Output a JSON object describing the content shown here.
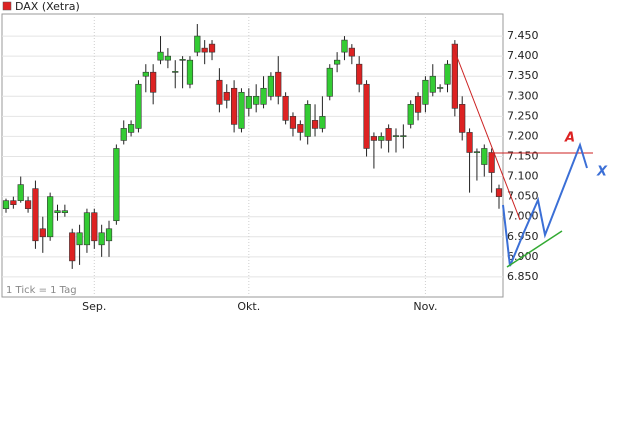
{
  "chart_data": {
    "type": "candlestick",
    "series": [
      {
        "name": "DAX (Xetra)",
        "color": "#dd2222",
        "open": [
          7020,
          7040,
          7040,
          7040,
          7070,
          6970,
          6950,
          7010,
          7010,
          6960,
          6930,
          6930,
          7010,
          6930,
          6940,
          6990,
          7190,
          7210,
          7220,
          7350,
          7360,
          7390,
          7390,
          7360,
          7390,
          7330,
          7410,
          7420,
          7430,
          7340,
          7310,
          7320,
          7220,
          7270,
          7280,
          7280,
          7300,
          7360,
          7300,
          7250,
          7230,
          7200,
          7240,
          7220,
          7300,
          7380,
          7410,
          7420,
          7380,
          7330,
          7200,
          7190,
          7220,
          7200,
          7200,
          7230,
          7300,
          7280,
          7310,
          7320,
          7330,
          7430,
          7280,
          7210,
          7160,
          7130,
          7160,
          7070
        ],
        "high": [
          7045,
          7050,
          7100,
          7050,
          7090,
          7000,
          7060,
          7030,
          7030,
          6970,
          6980,
          7020,
          7020,
          6980,
          6990,
          7180,
          7240,
          7240,
          7340,
          7380,
          7380,
          7450,
          7420,
          7390,
          7400,
          7400,
          7480,
          7440,
          7440,
          7370,
          7330,
          7340,
          7320,
          7320,
          7330,
          7350,
          7360,
          7400,
          7310,
          7260,
          7240,
          7290,
          7280,
          7300,
          7380,
          7410,
          7450,
          7430,
          7400,
          7340,
          7210,
          7210,
          7230,
          7220,
          7230,
          7290,
          7310,
          7350,
          7380,
          7330,
          7390,
          7440,
          7300,
          7220,
          7170,
          7180,
          7170,
          7080
        ],
        "low": [
          7010,
          7020,
          7035,
          7010,
          6920,
          6910,
          6940,
          6990,
          7000,
          6870,
          6880,
          6910,
          6920,
          6900,
          6900,
          6980,
          7180,
          7200,
          7210,
          7310,
          7280,
          7380,
          7370,
          7320,
          7320,
          7320,
          7400,
          7380,
          7390,
          7260,
          7270,
          7210,
          7210,
          7250,
          7260,
          7270,
          7290,
          7280,
          7230,
          7200,
          7190,
          7180,
          7200,
          7210,
          7290,
          7360,
          7390,
          7380,
          7310,
          7150,
          7120,
          7170,
          7160,
          7160,
          7170,
          7220,
          7240,
          7260,
          7300,
          7310,
          7310,
          7250,
          7190,
          7060,
          7090,
          7100,
          7060,
          7020
        ],
        "close": [
          7040,
          7030,
          7080,
          7020,
          6940,
          6950,
          7050,
          7015,
          7015,
          6890,
          6960,
          7010,
          6940,
          6960,
          6970,
          7170,
          7220,
          7230,
          7330,
          7360,
          7310,
          7410,
          7400,
          7362,
          7392,
          7390,
          7450,
          7410,
          7410,
          7280,
          7290,
          7230,
          7310,
          7300,
          7300,
          7320,
          7350,
          7300,
          7240,
          7220,
          7210,
          7280,
          7220,
          7250,
          7370,
          7390,
          7440,
          7400,
          7330,
          7170,
          7190,
          7200,
          7190,
          7202,
          7202,
          7280,
          7260,
          7340,
          7350,
          7322,
          7380,
          7270,
          7210,
          7160,
          7162,
          7170,
          7110,
          7050
        ]
      }
    ],
    "up_color": "#33cc33",
    "down_color": "#dd2222",
    "categories": [
      null,
      null,
      null,
      null,
      null,
      null,
      null,
      null,
      null,
      null,
      null,
      null,
      "Sep.",
      null,
      null,
      null,
      null,
      null,
      null,
      null,
      null,
      null,
      null,
      null,
      null,
      null,
      null,
      null,
      null,
      null,
      null,
      null,
      null,
      "Okt.",
      null,
      null,
      null,
      null,
      null,
      null,
      null,
      null,
      null,
      null,
      null,
      null,
      null,
      null,
      null,
      null,
      null,
      null,
      null,
      null,
      null,
      null,
      null,
      "Nov.",
      null,
      null,
      null,
      null,
      null,
      null,
      null,
      null,
      null,
      null
    ],
    "ylim": [
      6800,
      7505
    ],
    "yticks": [
      {
        "value": 6850,
        "label": "6.850"
      },
      {
        "value": 6900,
        "label": "6.900"
      },
      {
        "value": 6950,
        "label": "6.950"
      },
      {
        "value": 7000,
        "label": "7.000"
      },
      {
        "value": 7050,
        "label": "7.050"
      },
      {
        "value": 7100,
        "label": "7.100"
      },
      {
        "value": 7150,
        "label": "7.150"
      },
      {
        "value": 7200,
        "label": "7.200"
      },
      {
        "value": 7250,
        "label": "7.250"
      },
      {
        "value": 7300,
        "label": "7.300"
      },
      {
        "value": 7350,
        "label": "7.350"
      },
      {
        "value": 7400,
        "label": "7.400"
      },
      {
        "value": 7450,
        "label": "7.450"
      }
    ],
    "grid": true,
    "note": "1 Tick = 1 Tag",
    "annotations": [
      "A",
      "X"
    ]
  }
}
